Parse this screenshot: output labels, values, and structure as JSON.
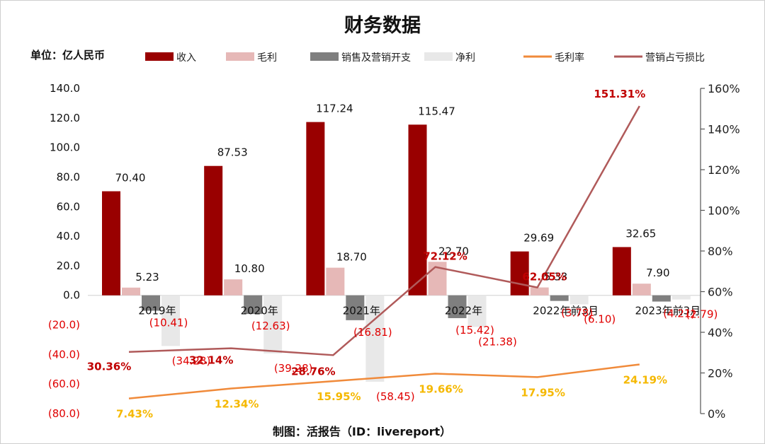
{
  "chart_data": {
    "type": "bar",
    "title": "财务数据",
    "unit_label": "单位：亿人民币",
    "footer": "制图：活报告（ID：livereport）",
    "categories": [
      "2019年",
      "2020年",
      "2021年",
      "2022年",
      "2022年前3月",
      "2023年前3月"
    ],
    "y_left": {
      "range": [
        -80,
        140
      ],
      "ticks": [
        140,
        120,
        100,
        80,
        60,
        40,
        20,
        0,
        -20,
        -40,
        -60,
        -80
      ],
      "tick_labels": [
        "140.0",
        "120.0",
        "100.0",
        "80.0",
        "60.0",
        "40.0",
        "20.0",
        "0.0",
        "(20.0)",
        "(40.0)",
        "(60.0)",
        "(80.0)"
      ]
    },
    "y_right": {
      "range": [
        0,
        160
      ],
      "ticks": [
        160,
        140,
        120,
        100,
        80,
        60,
        40,
        20,
        0
      ],
      "tick_labels": [
        "160%",
        "140%",
        "120%",
        "100%",
        "80%",
        "60%",
        "40%",
        "20%",
        "0%"
      ]
    },
    "bar_series": [
      {
        "name": "收入",
        "color": "#990000",
        "values": [
          70.4,
          87.53,
          117.24,
          115.47,
          29.69,
          32.65
        ],
        "labels": [
          "70.40",
          "87.53",
          "117.24",
          "115.47",
          "29.69",
          "32.65"
        ]
      },
      {
        "name": "毛利",
        "color": "#e6b8b7",
        "values": [
          5.23,
          10.8,
          18.7,
          22.7,
          5.33,
          7.9
        ],
        "labels": [
          "5.23",
          "10.80",
          "18.70",
          "22.70",
          "5.33",
          "7.90"
        ]
      },
      {
        "name": "销售及营销开支",
        "color": "#7f7f7f",
        "values": [
          -10.41,
          -12.63,
          -16.81,
          -15.42,
          -3.78,
          -4.21
        ],
        "labels": [
          "(10.41)",
          "(12.63)",
          "(16.81)",
          "(15.42)",
          "(3.78)",
          "(4.21)"
        ]
      },
      {
        "name": "净利",
        "color": "#e8e8e8",
        "values": [
          -34.28,
          -39.28,
          -58.45,
          -21.38,
          -6.1,
          -2.79
        ],
        "labels": [
          "(34.28)",
          "(39.28)",
          "(58.45)",
          "(21.38)",
          "(6.10)",
          "(2.79)"
        ]
      }
    ],
    "line_series": [
      {
        "name": "毛利率",
        "color": "#f08a3a",
        "values": [
          7.43,
          12.34,
          15.95,
          19.66,
          17.95,
          24.19
        ],
        "labels": [
          "7.43%",
          "12.34%",
          "15.95%",
          "19.66%",
          "17.95%",
          "24.19%"
        ]
      },
      {
        "name": "营销占亏损比",
        "color": "#b05a5a",
        "values": [
          30.36,
          32.14,
          28.76,
          72.12,
          62.05,
          151.31
        ],
        "labels": [
          "30.36%",
          "32.14%",
          "28.76%",
          "72.12%",
          "62.05%",
          "151.31%"
        ]
      }
    ],
    "legend_position": "top",
    "grid": false
  }
}
